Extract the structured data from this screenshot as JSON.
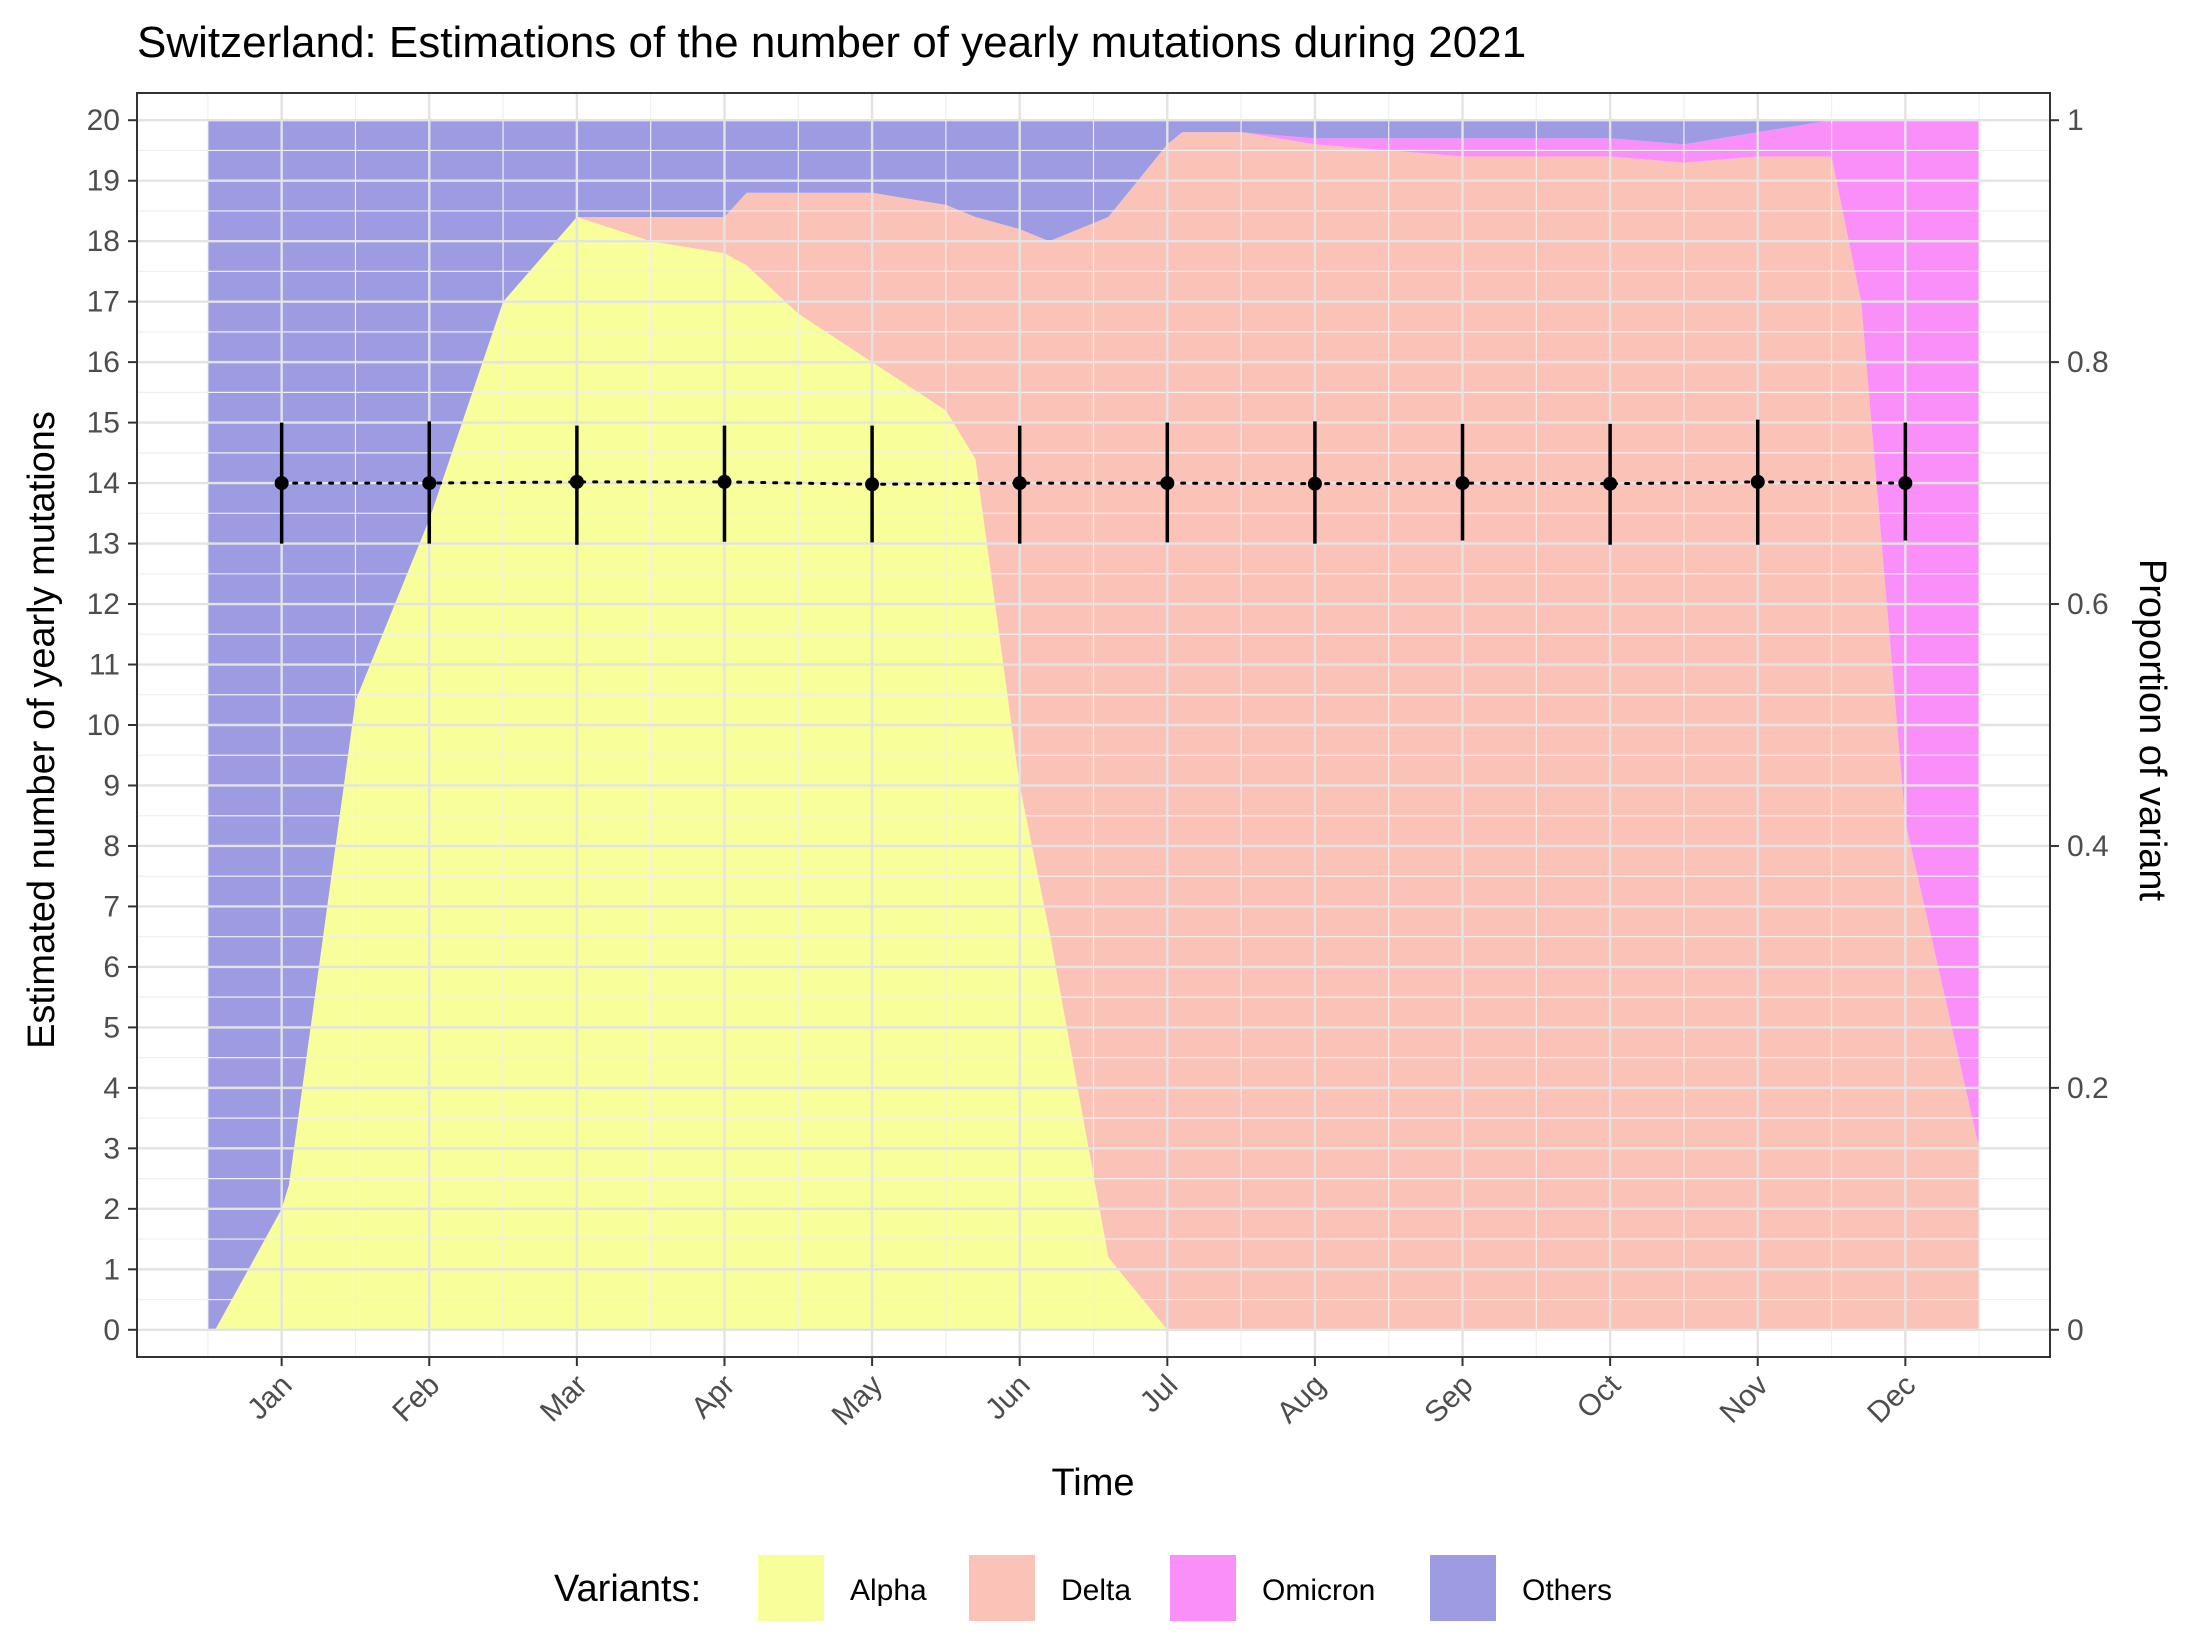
{
  "chart_data": {
    "type": "area",
    "title": "Switzerland: Estimations of the number of yearly mutations during 2021",
    "xlabel": "Time",
    "ylabel": "Estimated number of yearly mutations",
    "y2label": "Proportion of variant",
    "categories": [
      "Jan",
      "Feb",
      "Mar",
      "Apr",
      "May",
      "Jun",
      "Jul",
      "Aug",
      "Sep",
      "Oct",
      "Nov",
      "Dec"
    ],
    "ylim": [
      0,
      20
    ],
    "yticks": [
      "0",
      "1",
      "2",
      "3",
      "4",
      "5",
      "6",
      "7",
      "8",
      "9",
      "10",
      "11",
      "12",
      "13",
      "14",
      "15",
      "16",
      "17",
      "18",
      "19",
      "20"
    ],
    "y2lim": [
      0,
      1
    ],
    "y2ticks": [
      "0",
      "0.2",
      "0.4",
      "0.6",
      "0.8",
      "1"
    ],
    "grid": true,
    "legend_position": "bottom",
    "legend_title": "Variants:",
    "stacked_area": {
      "x": [
        -0.5,
        -0.45,
        0.0,
        0.05,
        0.5,
        1.0,
        1.5,
        2.0,
        2.5,
        3.0,
        3.15,
        3.5,
        4.0,
        4.5,
        4.7,
        5.0,
        5.2,
        5.6,
        6.0,
        6.1,
        6.5,
        7.0,
        7.5,
        8.0,
        8.5,
        9.0,
        9.5,
        10.0,
        10.5,
        10.7,
        11.0,
        11.5
      ],
      "series": [
        {
          "name": "Alpha",
          "color": "#F8FE9A",
          "values": [
            0.0,
            0.0,
            0.1,
            0.12,
            0.52,
            0.67,
            0.85,
            0.92,
            0.9,
            0.89,
            0.88,
            0.84,
            0.8,
            0.76,
            0.72,
            0.45,
            0.33,
            0.06,
            0.0,
            0.0,
            0.0,
            0.0,
            0.0,
            0.0,
            0.0,
            0.0,
            0.0,
            0.0,
            0.0,
            0.0,
            0.0,
            0.0
          ]
        },
        {
          "name": "Delta",
          "color": "#FBC3B8",
          "values": [
            0.0,
            0.0,
            0.0,
            0.0,
            0.0,
            0.0,
            0.0,
            0.0,
            0.02,
            0.03,
            0.06,
            0.1,
            0.14,
            0.17,
            0.2,
            0.46,
            0.57,
            0.86,
            0.98,
            0.99,
            0.99,
            0.98,
            0.975,
            0.97,
            0.97,
            0.97,
            0.965,
            0.97,
            0.97,
            0.85,
            0.42,
            0.15
          ]
        },
        {
          "name": "Omicron",
          "color": "#FB8FFA",
          "values": [
            0.0,
            0.0,
            0.0,
            0.0,
            0.0,
            0.0,
            0.0,
            0.0,
            0.0,
            0.0,
            0.0,
            0.0,
            0.0,
            0.0,
            0.0,
            0.0,
            0.0,
            0.0,
            0.0,
            0.0,
            0.0,
            0.005,
            0.01,
            0.015,
            0.015,
            0.015,
            0.015,
            0.02,
            0.03,
            0.15,
            0.58,
            0.85
          ]
        },
        {
          "name": "Others",
          "color": "#9D9CE3",
          "values": [
            1.0,
            1.0,
            0.9,
            0.88,
            0.48,
            0.33,
            0.15,
            0.08,
            0.08,
            0.08,
            0.06,
            0.06,
            0.06,
            0.07,
            0.08,
            0.09,
            0.1,
            0.08,
            0.02,
            0.01,
            0.01,
            0.015,
            0.015,
            0.015,
            0.015,
            0.015,
            0.02,
            0.01,
            0.0,
            0.0,
            0.0,
            0.0
          ]
        }
      ]
    },
    "points": {
      "x": [
        0,
        1,
        2,
        3,
        4,
        5,
        6,
        7,
        8,
        9,
        10,
        11
      ],
      "y": [
        14.0,
        14.0,
        14.02,
        14.02,
        13.98,
        14.0,
        14.0,
        13.99,
        14.0,
        13.99,
        14.02,
        14.0
      ],
      "ymin": [
        13.0,
        13.0,
        12.98,
        13.03,
        13.02,
        13.0,
        13.02,
        13.0,
        13.05,
        12.98,
        12.98,
        13.05
      ],
      "ymax": [
        15.0,
        15.02,
        14.95,
        14.95,
        14.95,
        14.95,
        15.0,
        15.02,
        14.98,
        14.98,
        15.05,
        15.0
      ]
    }
  }
}
